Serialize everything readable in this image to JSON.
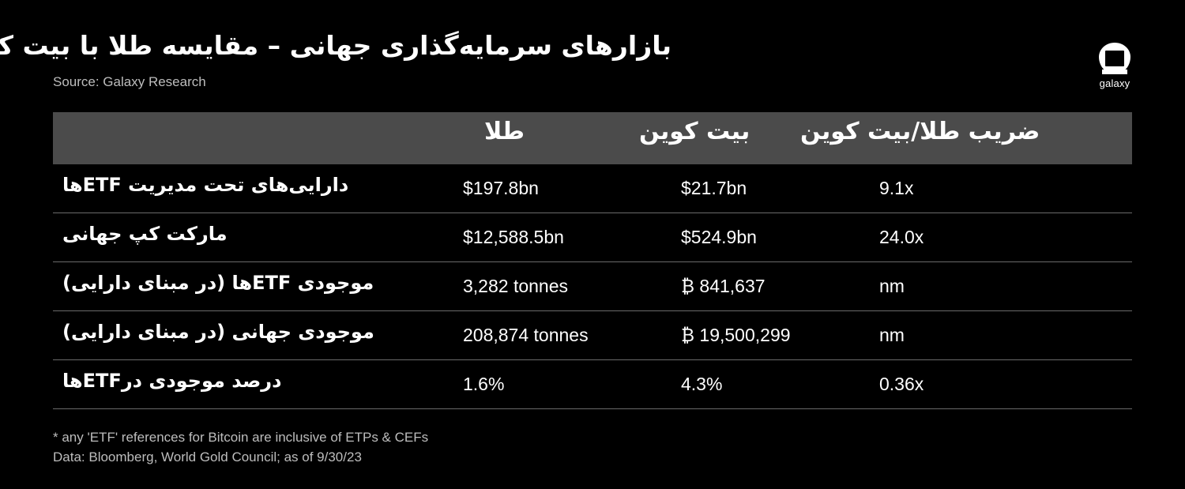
{
  "header": {
    "title": "بازارهای سرمایه‌گذاری جهانی – مقایسه طلا با بیت کوین",
    "source": "Source: Galaxy Research",
    "logo_text": "galaxy"
  },
  "table": {
    "columns": [
      "طلا",
      "بیت کوین",
      "ضریب طلا/بیت کوین"
    ],
    "rows": [
      {
        "label": "دارایی‌های تحت مدیریت ETFها",
        "gold": "$197.8bn",
        "btc": "$21.7bn",
        "ratio": "9.1x"
      },
      {
        "label": "مارکت کپ جهانی",
        "gold": "$12,588.5bn",
        "btc": "$524.9bn",
        "ratio": "24.0x"
      },
      {
        "label": "موجودی ETFها (در مبنای دارایی)",
        "gold": "3,282 tonnes",
        "btc": "₿ 841,637",
        "ratio": "nm"
      },
      {
        "label": "موجودی جهانی (در مبنای دارایی)",
        "gold": "208,874 tonnes",
        "btc": "₿ 19,500,299",
        "ratio": "nm"
      },
      {
        "label": "درصد موجودی درETFها",
        "gold": "1.6%",
        "btc": "4.3%",
        "ratio": "0.36x"
      }
    ]
  },
  "footnotes": {
    "line1": "* any 'ETF' references for Bitcoin are inclusive of ETPs & CEFs",
    "line2": "Data: Bloomberg, World Gold Council; as of 9/30/23"
  },
  "colors": {
    "background": "#000000",
    "header_row": "#4b4b4b",
    "text": "#ffffff",
    "muted_text": "#bdbdbd",
    "divider": "#6a6a6a"
  }
}
